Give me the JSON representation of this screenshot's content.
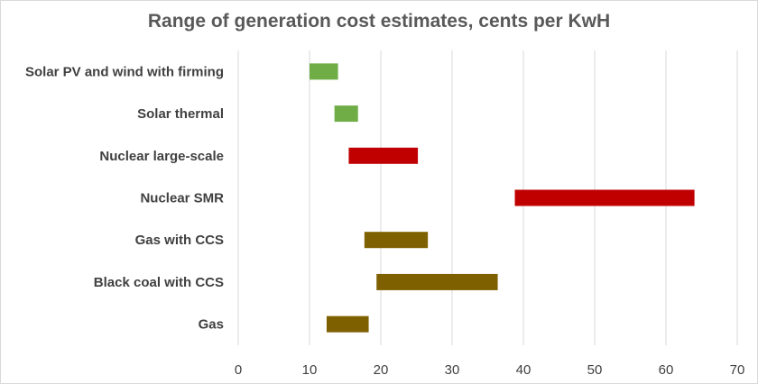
{
  "chart_data": {
    "type": "bar",
    "orientation": "horizontal",
    "subtype": "floating-range",
    "title": "Range of generation cost estimates, cents per KwH",
    "xlabel": "",
    "ylabel": "",
    "xlim": [
      0,
      70
    ],
    "xticks": [
      0,
      10,
      20,
      30,
      40,
      50,
      60,
      70
    ],
    "grid": true,
    "legend": "none",
    "categories": [
      "Solar PV and wind with firming",
      "Solar thermal",
      "Nuclear large-scale",
      "Nuclear SMR",
      "Gas with CCS",
      "Black coal with CCS",
      "Gas"
    ],
    "ranges": [
      {
        "low": 10,
        "high": 14,
        "color": "#70ad47"
      },
      {
        "low": 13.5,
        "high": 16.8,
        "color": "#70ad47"
      },
      {
        "low": 15.5,
        "high": 25.2,
        "color": "#c00000"
      },
      {
        "low": 38.8,
        "high": 64,
        "color": "#c00000"
      },
      {
        "low": 17.7,
        "high": 26.6,
        "color": "#7f6000"
      },
      {
        "low": 19.4,
        "high": 36.4,
        "color": "#7f6000"
      },
      {
        "low": 12.4,
        "high": 18.3,
        "color": "#7f6000"
      }
    ]
  }
}
